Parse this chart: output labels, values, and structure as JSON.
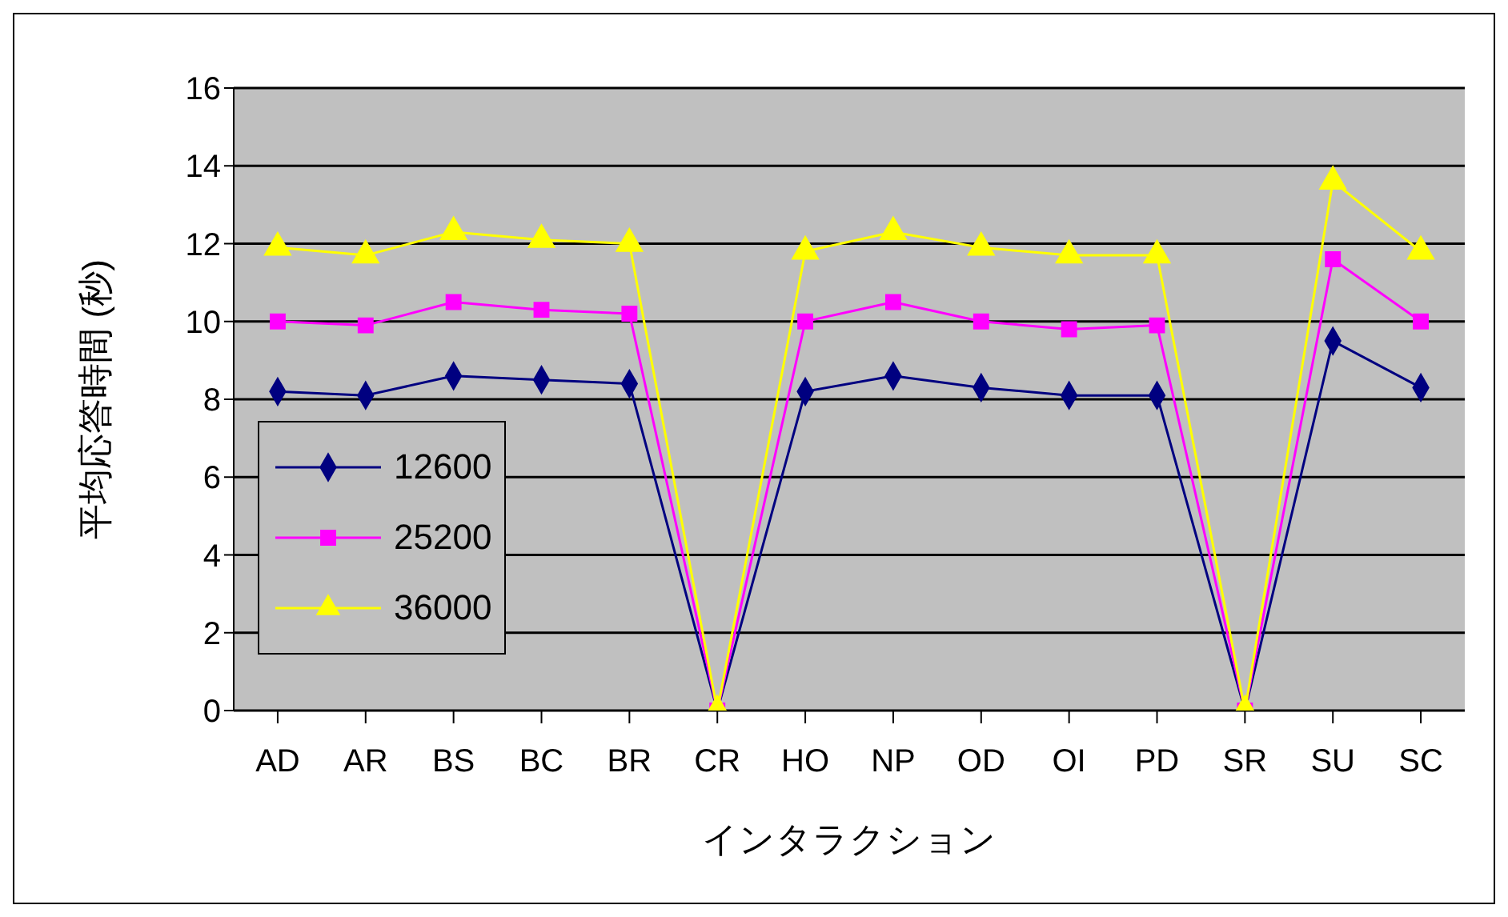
{
  "chart_data": {
    "type": "line",
    "xlabel": "インタラクション",
    "ylabel": "平均応答時間 (秒)",
    "categories": [
      "AD",
      "AR",
      "BS",
      "BC",
      "BR",
      "CR",
      "HO",
      "NP",
      "OD",
      "OI",
      "PD",
      "SR",
      "SU",
      "SC"
    ],
    "series": [
      {
        "name": "12600",
        "color": "#000080",
        "marker": "diamond",
        "values": [
          8.2,
          8.1,
          8.6,
          8.5,
          8.4,
          0,
          8.2,
          8.6,
          8.3,
          8.1,
          8.1,
          0,
          9.5,
          8.3
        ]
      },
      {
        "name": "25200",
        "color": "#ff00ff",
        "marker": "square",
        "values": [
          10.0,
          9.9,
          10.5,
          10.3,
          10.2,
          0,
          10.0,
          10.5,
          10.0,
          9.8,
          9.9,
          0,
          11.6,
          10.0
        ]
      },
      {
        "name": "36000",
        "color": "#ffff00",
        "marker": "triangle",
        "values": [
          11.9,
          11.7,
          12.3,
          12.1,
          12.0,
          0,
          11.8,
          12.3,
          11.9,
          11.7,
          11.7,
          0,
          13.6,
          11.8
        ]
      }
    ],
    "ylim": [
      0,
      16
    ],
    "yticks": [
      0,
      2,
      4,
      6,
      8,
      10,
      12,
      14,
      16
    ],
    "grid": "y",
    "legend": "bottom left"
  }
}
